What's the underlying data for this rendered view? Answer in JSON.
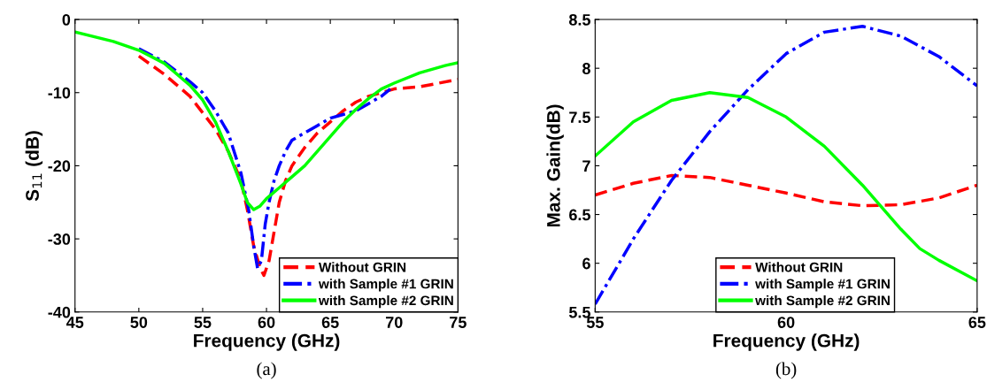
{
  "chart_data": [
    {
      "type": "line",
      "xlabel": "Frequency (GHz)",
      "ylabel": "S$_{11}$ (dB)",
      "xlim": [
        45,
        75
      ],
      "ylim": [
        -40,
        0
      ],
      "xticks": [
        45,
        50,
        55,
        60,
        65,
        70,
        75
      ],
      "yticks": [
        -40,
        -30,
        -20,
        -10,
        0
      ],
      "grid": false,
      "legend": "bottom right",
      "annotations": [
        "(a)"
      ],
      "series": [
        {
          "name": "Without GRIN",
          "color": "#ff0000",
          "line_style": "dashed",
          "x": [
            50,
            52,
            54,
            56,
            57,
            58,
            58.5,
            59,
            59.5,
            59.8,
            60.2,
            60.6,
            61,
            61.5,
            62,
            63,
            64,
            65,
            66,
            67,
            68,
            69,
            70,
            72,
            75
          ],
          "values": [
            -5,
            -7.5,
            -10.5,
            -15,
            -18,
            -22,
            -26,
            -31,
            -34,
            -35,
            -33,
            -29,
            -25,
            -22,
            -20,
            -17.5,
            -15.5,
            -14,
            -12.5,
            -11.3,
            -10.5,
            -10,
            -9.5,
            -9.2,
            -8.2
          ]
        },
        {
          "name": "with Sample #1 GRIN",
          "color": "#0000ff",
          "line_style": "dashdot",
          "x": [
            50,
            52,
            54,
            55,
            56,
            57,
            58,
            58.6,
            59,
            59.3,
            59.6,
            59.9,
            60.2,
            60.6,
            61,
            61.5,
            62,
            63,
            64,
            65,
            66,
            67,
            68,
            69,
            69.7
          ],
          "values": [
            -4,
            -5.8,
            -8.5,
            -10,
            -12.5,
            -15.5,
            -21,
            -26,
            -31,
            -34,
            -33,
            -28,
            -25,
            -22,
            -20,
            -18,
            -16.5,
            -15.5,
            -14.5,
            -13.5,
            -13,
            -12.5,
            -11.5,
            -10.5,
            -9.5
          ]
        },
        {
          "name": "with Sample #2 GRIN",
          "color": "#00ff00",
          "line_style": "solid",
          "x": [
            45,
            48,
            50,
            52,
            54,
            55,
            56,
            57,
            58,
            58.5,
            59,
            59.5,
            60,
            61,
            62,
            63,
            64,
            65,
            66,
            67,
            68,
            69,
            70,
            72,
            74,
            75
          ],
          "values": [
            -1.7,
            -3,
            -4.2,
            -6,
            -9,
            -11,
            -14,
            -18,
            -22.5,
            -25,
            -26,
            -25.5,
            -24.5,
            -23,
            -21.5,
            -20,
            -18,
            -16,
            -14,
            -12.3,
            -10.8,
            -9.5,
            -8.7,
            -7.3,
            -6.3,
            -5.9
          ]
        }
      ]
    },
    {
      "type": "line",
      "xlabel": "Frequency (GHz)",
      "ylabel": "Max. Gain(dB)",
      "xlim": [
        55,
        65
      ],
      "ylim": [
        5.5,
        8.5
      ],
      "xticks": [
        55,
        60,
        65
      ],
      "yticks": [
        5.5,
        6,
        6.5,
        7,
        7.5,
        8,
        8.5
      ],
      "grid": false,
      "legend": "bottom",
      "annotations": [
        "(b)"
      ],
      "series": [
        {
          "name": "Without GRIN",
          "color": "#ff0000",
          "line_style": "dashed",
          "x": [
            55,
            56,
            57,
            58,
            59,
            60,
            61,
            62,
            63,
            64,
            65
          ],
          "values": [
            6.7,
            6.82,
            6.9,
            6.88,
            6.8,
            6.72,
            6.63,
            6.59,
            6.6,
            6.67,
            6.8
          ]
        },
        {
          "name": "with Sample #1 GRIN",
          "color": "#0000ff",
          "line_style": "dashdot",
          "x": [
            55,
            56,
            57,
            58,
            59,
            60,
            61,
            62,
            63,
            64,
            65
          ],
          "values": [
            5.58,
            6.25,
            6.85,
            7.35,
            7.78,
            8.15,
            8.37,
            8.43,
            8.33,
            8.12,
            7.82
          ]
        },
        {
          "name": "with Sample #2 GRIN",
          "color": "#00ff00",
          "line_style": "solid",
          "x": [
            55,
            56,
            57,
            58,
            59,
            60,
            61,
            62,
            63,
            63.5,
            64,
            65
          ],
          "values": [
            7.1,
            7.45,
            7.67,
            7.75,
            7.7,
            7.5,
            7.2,
            6.8,
            6.35,
            6.15,
            6.03,
            5.82
          ]
        }
      ]
    }
  ]
}
